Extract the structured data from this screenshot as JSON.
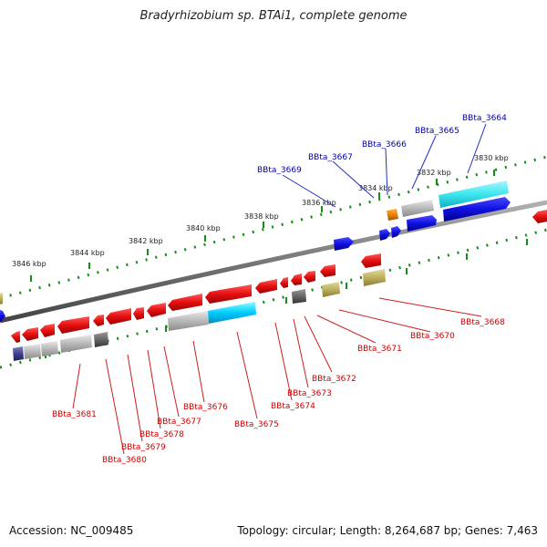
{
  "title": "Bradyrhizobium sp. BTAi1, complete genome",
  "accession": "Accession: NC_009485",
  "summary": "Topology: circular; Length: 8,264,687 bp; Genes: 7,463",
  "colors": {
    "backbone": "#808080",
    "ruler": "#1a8a1a",
    "forward_gene": "#1010e0",
    "reverse_gene": "#e01010",
    "label_top": "#0000aa",
    "label_bottom": "#cc0000"
  },
  "ruler_labels": [
    "3830 kbp",
    "3832 kbp",
    "3834 kbp",
    "3836 kbp",
    "3838 kbp",
    "3840 kbp",
    "3842 kbp",
    "3844 kbp",
    "3846 kbp"
  ],
  "top_gene_labels": [
    "BBta_3664",
    "BBta_3665",
    "BBta_3666",
    "BBta_3667",
    "BBta_3669"
  ],
  "bottom_gene_labels": [
    "BBta_3668",
    "BBta_3670",
    "BBta_3671",
    "BBta_3672",
    "BBta_3673",
    "BBta_3674",
    "BBta_3675",
    "BBta_3676",
    "BBta_3677",
    "BBta_3678",
    "BBta_3679",
    "BBta_3680",
    "BBta_3681"
  ]
}
